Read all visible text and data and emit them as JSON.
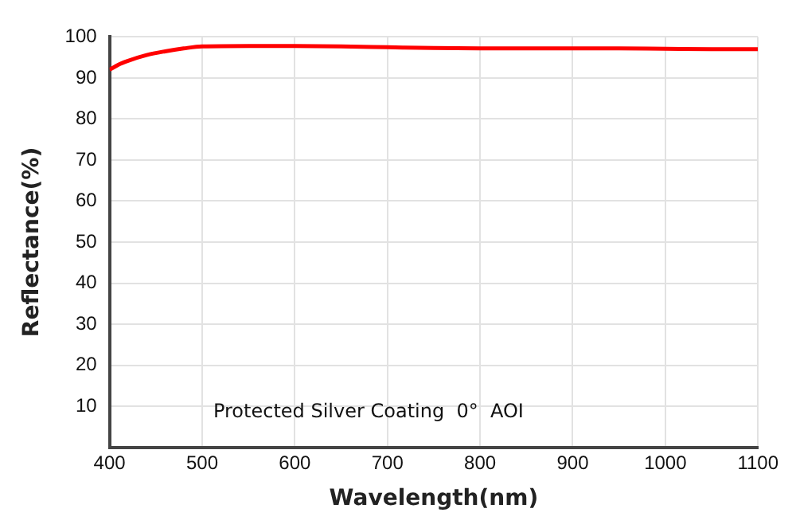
{
  "chart_data": {
    "type": "line",
    "xlabel": "Wavelength(nm)",
    "ylabel": "Reflectance(%)",
    "x": [
      400,
      410,
      420,
      440,
      460,
      480,
      500,
      550,
      600,
      650,
      700,
      750,
      800,
      850,
      900,
      950,
      1000,
      1050,
      1100
    ],
    "series": [
      {
        "color": "#ff0000",
        "values": [
          92,
          93.3,
          94.2,
          95.6,
          96.5,
          97.2,
          97.7,
          97.8,
          97.8,
          97.7,
          97.5,
          97.3,
          97.2,
          97.2,
          97.2,
          97.2,
          97.1,
          97.0,
          97.0
        ]
      }
    ],
    "xlim": [
      400,
      1100
    ],
    "xticks": [
      400,
      500,
      600,
      700,
      800,
      900,
      1000,
      1100
    ],
    "ylim": [
      0,
      100
    ],
    "yticks": [
      10,
      20,
      30,
      40,
      50,
      60,
      70,
      80,
      90,
      100
    ],
    "grid": true,
    "legend": false,
    "marker": "none",
    "line_style": "solid",
    "annotations": [
      "Protected Silver Coating  0°  AOI"
    ]
  }
}
